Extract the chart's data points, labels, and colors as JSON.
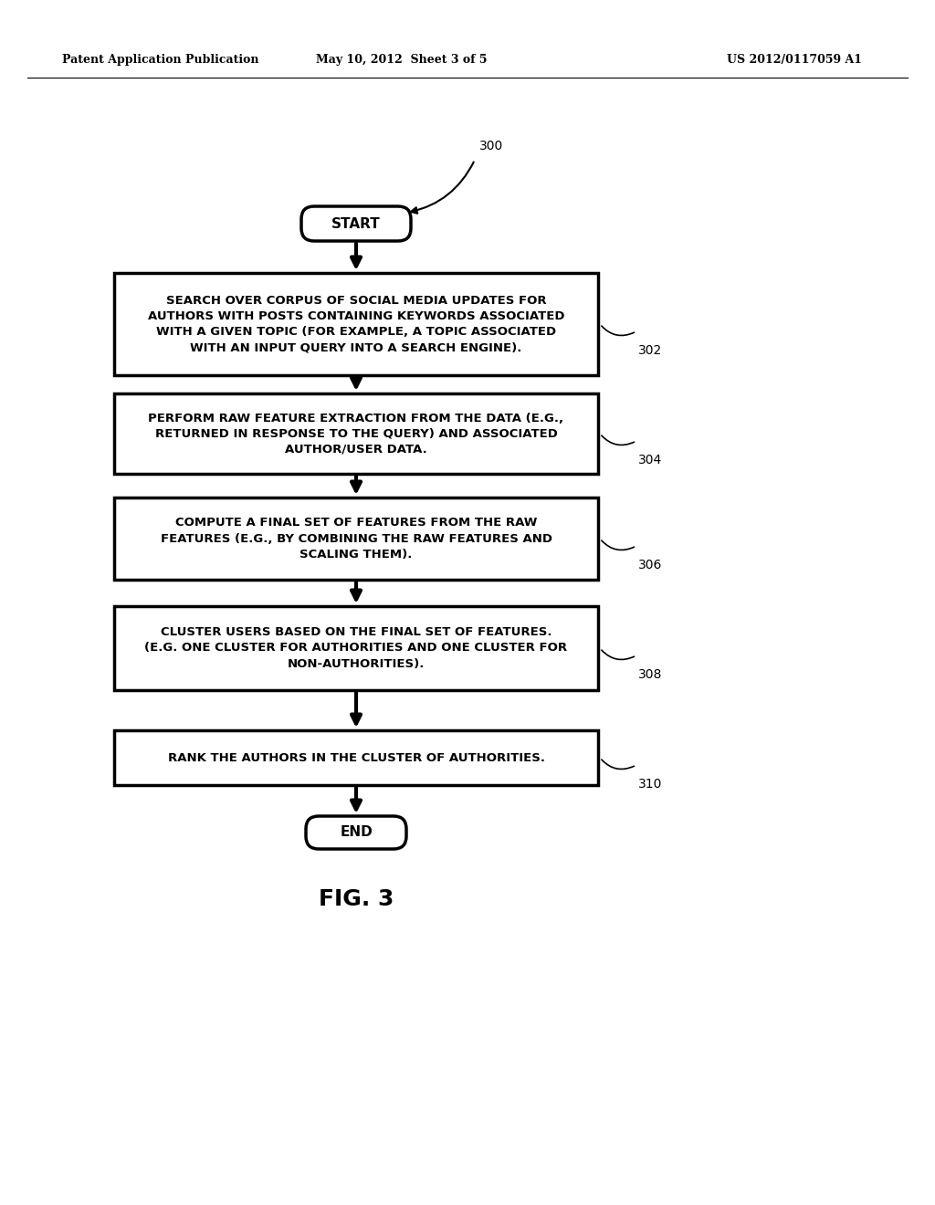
{
  "background_color": "#ffffff",
  "header_left": "Patent Application Publication",
  "header_center": "May 10, 2012  Sheet 3 of 5",
  "header_right": "US 2012/0117059 A1",
  "fig_label": "FIG. 3",
  "diagram_label": "300",
  "start_label": "START",
  "end_label": "END",
  "box_texts": [
    "SEARCH OVER CORPUS OF SOCIAL MEDIA UPDATES FOR\nAUTHORS WITH POSTS CONTAINING KEYWORDS ASSOCIATED\nWITH A GIVEN TOPIC (FOR EXAMPLE, A TOPIC ASSOCIATED\nWITH AN INPUT QUERY INTO A SEARCH ENGINE).",
    "PERFORM RAW FEATURE EXTRACTION FROM THE DATA (E.G.,\nRETURNED IN RESPONSE TO THE QUERY) AND ASSOCIATED\nAUTHOR/USER DATA.",
    "COMPUTE A FINAL SET OF FEATURES FROM THE RAW\nFEATURES (E.G., BY COMBINING THE RAW FEATURES AND\nSCALING THEM).",
    "CLUSTER USERS BASED ON THE FINAL SET OF FEATURES.\n(E.G. ONE CLUSTER FOR AUTHORITIES AND ONE CLUSTER FOR\nNON-AUTHORITIES).",
    "RANK THE AUTHORS IN THE CLUSTER OF AUTHORITIES."
  ],
  "box_labels": [
    "302",
    "304",
    "306",
    "308",
    "310"
  ],
  "text_color": "#000000"
}
